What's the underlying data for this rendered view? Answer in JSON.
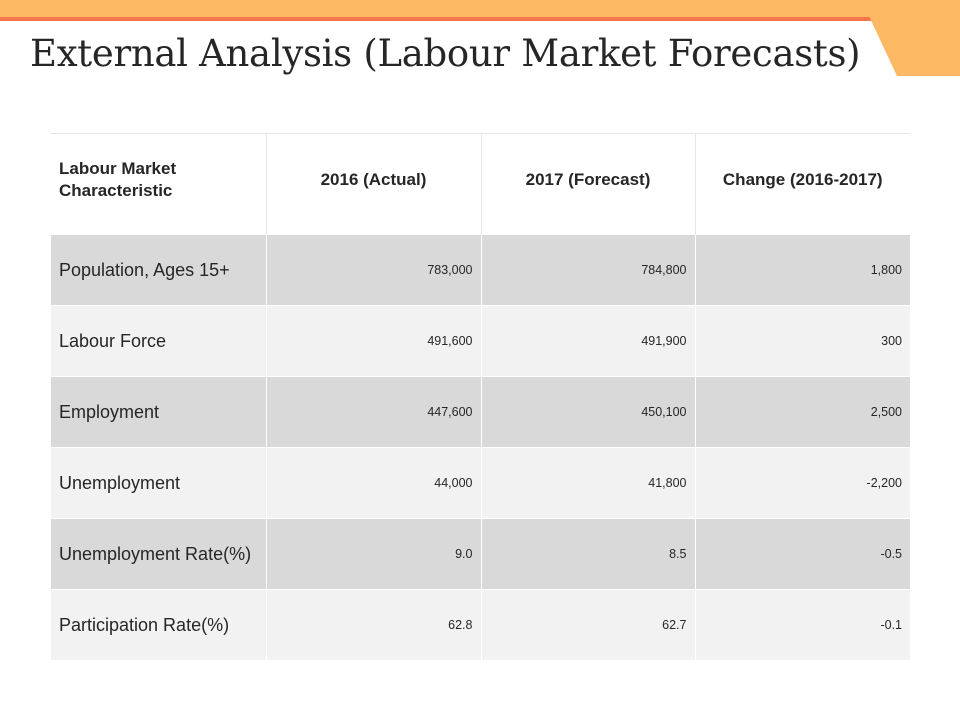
{
  "slide": {
    "title": "External Analysis (Labour Market Forecasts)"
  },
  "colors": {
    "band": "#FDB864",
    "accent_line": "#F4774A",
    "row_dark": "#D9D9D9",
    "row_light": "#F2F2F2"
  },
  "table": {
    "headers": [
      "Labour Market Characteristic",
      "2016 (Actual)",
      "2017 (Forecast)",
      "Change (2016-2017)"
    ],
    "rows": [
      [
        "Population, Ages 15+",
        "783,000",
        "784,800",
        "1,800"
      ],
      [
        "Labour Force",
        "491,600",
        "491,900",
        "300"
      ],
      [
        "Employment",
        "447,600",
        "450,100",
        "2,500"
      ],
      [
        "Unemployment",
        "44,000",
        "41,800",
        "-2,200"
      ],
      [
        "Unemployment Rate(%)",
        "9.0",
        "8.5",
        "-0.5"
      ],
      [
        "Participation Rate(%)",
        "62.8",
        "62.7",
        "-0.1"
      ]
    ]
  }
}
